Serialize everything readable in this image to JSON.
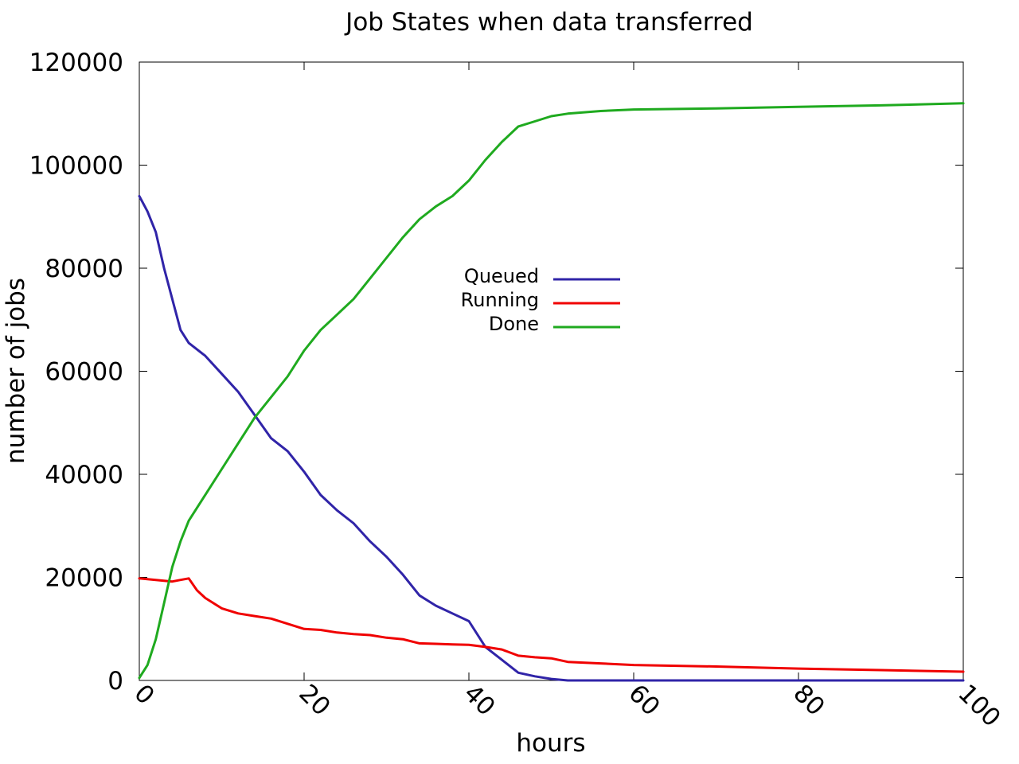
{
  "chart_data": {
    "type": "line",
    "title": "Job States when data transferred",
    "xlabel": "hours",
    "ylabel": "number of jobs",
    "xlim": [
      0,
      100
    ],
    "ylim": [
      0,
      120000
    ],
    "x_ticks": [
      "0",
      "20",
      "40",
      "60",
      "80",
      "100"
    ],
    "y_ticks": [
      "0",
      "20000",
      "40000",
      "60000",
      "80000",
      "100000",
      "120000"
    ],
    "grid": false,
    "legend_position": "center",
    "series": [
      {
        "name": "Queued",
        "color": "#3024a8",
        "x": [
          0,
          1,
          2,
          3,
          4,
          5,
          6,
          8,
          10,
          12,
          14,
          16,
          18,
          20,
          22,
          24,
          26,
          28,
          30,
          32,
          34,
          36,
          38,
          40,
          42,
          44,
          46,
          48,
          50,
          52,
          60,
          70,
          80,
          90,
          100
        ],
        "y": [
          94000,
          91000,
          87000,
          80000,
          74000,
          68000,
          65500,
          63000,
          59500,
          56000,
          51500,
          47000,
          44500,
          40500,
          36000,
          33000,
          30500,
          27000,
          24000,
          20500,
          16500,
          14500,
          13000,
          11500,
          6500,
          4000,
          1500,
          800,
          300,
          0,
          0,
          0,
          0,
          0,
          0
        ]
      },
      {
        "name": "Running",
        "color": "#f00000",
        "x": [
          0,
          2,
          4,
          5,
          6,
          7,
          8,
          10,
          12,
          14,
          16,
          18,
          20,
          22,
          24,
          26,
          28,
          30,
          32,
          34,
          36,
          38,
          40,
          42,
          44,
          46,
          48,
          50,
          52,
          56,
          60,
          70,
          80,
          90,
          100
        ],
        "y": [
          19800,
          19500,
          19200,
          19500,
          19800,
          17500,
          16000,
          14000,
          13000,
          12500,
          12000,
          11000,
          10000,
          9800,
          9300,
          9000,
          8800,
          8300,
          8000,
          7200,
          7100,
          7000,
          6900,
          6500,
          6000,
          4800,
          4500,
          4300,
          3600,
          3300,
          3000,
          2700,
          2300,
          2000,
          1700
        ]
      },
      {
        "name": "Done",
        "color": "#1faa1f",
        "x": [
          0,
          1,
          2,
          3,
          4,
          5,
          6,
          8,
          10,
          12,
          14,
          16,
          18,
          20,
          22,
          24,
          26,
          28,
          30,
          32,
          34,
          36,
          38,
          40,
          42,
          44,
          46,
          48,
          50,
          52,
          56,
          60,
          70,
          80,
          90,
          100
        ],
        "y": [
          500,
          3000,
          8000,
          15000,
          22000,
          27000,
          31000,
          36000,
          41000,
          46000,
          51000,
          55000,
          59000,
          64000,
          68000,
          71000,
          74000,
          78000,
          82000,
          86000,
          89500,
          92000,
          94000,
          97000,
          101000,
          104500,
          107500,
          108500,
          109500,
          110000,
          110500,
          110800,
          111000,
          111300,
          111600,
          112000
        ]
      }
    ]
  }
}
